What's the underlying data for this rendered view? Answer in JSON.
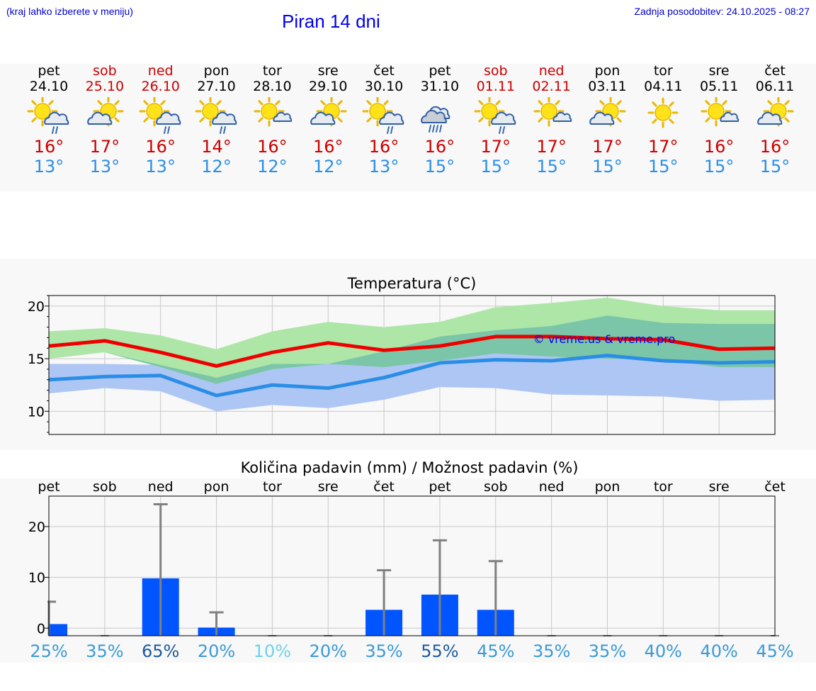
{
  "header": {
    "hint": "(kraj lahko izberete v meniju)",
    "title": "Piran 14 dni",
    "updated": "Zadnja posodobitev: 24.10.2025 - 08:27"
  },
  "days": [
    {
      "name": "pet",
      "date": "24.10",
      "weekend": false,
      "icon": "sun-cloud-rain-icon",
      "tmax": "16°",
      "tmin": "13°"
    },
    {
      "name": "sob",
      "date": "25.10",
      "weekend": true,
      "icon": "sun-cloud-icon",
      "tmax": "17°",
      "tmin": "13°"
    },
    {
      "name": "ned",
      "date": "26.10",
      "weekend": true,
      "icon": "sun-cloud-rain-icon",
      "tmax": "16°",
      "tmin": "13°"
    },
    {
      "name": "pon",
      "date": "27.10",
      "weekend": false,
      "icon": "sun-cloud-rain-icon",
      "tmax": "14°",
      "tmin": "12°"
    },
    {
      "name": "tor",
      "date": "28.10",
      "weekend": false,
      "icon": "sun-small-cloud-icon",
      "tmax": "16°",
      "tmin": "12°"
    },
    {
      "name": "sre",
      "date": "29.10",
      "weekend": false,
      "icon": "sun-cloud-icon",
      "tmax": "16°",
      "tmin": "12°"
    },
    {
      "name": "čet",
      "date": "30.10",
      "weekend": false,
      "icon": "sun-cloud-rain-icon",
      "tmax": "16°",
      "tmin": "13°"
    },
    {
      "name": "pet",
      "date": "31.10",
      "weekend": false,
      "icon": "cloud-heavy-rain-icon",
      "tmax": "16°",
      "tmin": "15°"
    },
    {
      "name": "sob",
      "date": "01.11",
      "weekend": true,
      "icon": "sun-cloud-rain-icon",
      "tmax": "17°",
      "tmin": "15°"
    },
    {
      "name": "ned",
      "date": "02.11",
      "weekend": true,
      "icon": "sun-small-cloud-icon",
      "tmax": "17°",
      "tmin": "15°"
    },
    {
      "name": "pon",
      "date": "03.11",
      "weekend": false,
      "icon": "sun-cloud-icon",
      "tmax": "17°",
      "tmin": "15°"
    },
    {
      "name": "tor",
      "date": "04.11",
      "weekend": false,
      "icon": "sun-icon",
      "tmax": "17°",
      "tmin": "15°"
    },
    {
      "name": "sre",
      "date": "05.11",
      "weekend": false,
      "icon": "sun-small-cloud-icon",
      "tmax": "16°",
      "tmin": "15°"
    },
    {
      "name": "čet",
      "date": "06.11",
      "weekend": false,
      "icon": "sun-cloud-icon",
      "tmax": "16°",
      "tmin": "15°"
    }
  ],
  "colors": {
    "max_line": "#ee0000",
    "min_line": "#2a8ee6",
    "max_band": "#aee6a8",
    "min_band": "#aec6f4",
    "overlap_band": "#7bc5a8",
    "bar": "#0055ff",
    "error_bar": "#808080",
    "link": "#0000ee"
  },
  "chart_data": [
    {
      "type": "line",
      "title": "Temperatura (°C)",
      "watermark": "© vreme.us & vreme.pro",
      "ylim": [
        7.8,
        21
      ],
      "yticks": [
        10,
        15,
        20
      ],
      "x": [
        0,
        1,
        2,
        3,
        4,
        5,
        6,
        7,
        8,
        9,
        10,
        11,
        12,
        13
      ],
      "series": [
        {
          "name": "max",
          "values": [
            16.2,
            16.7,
            15.6,
            14.3,
            15.6,
            16.5,
            15.8,
            16.2,
            17.1,
            17.1,
            16.9,
            16.8,
            15.9,
            16.0
          ]
        },
        {
          "name": "min",
          "values": [
            13.0,
            13.3,
            13.4,
            11.5,
            12.5,
            12.2,
            13.2,
            14.6,
            14.9,
            14.8,
            15.3,
            14.8,
            14.6,
            14.7
          ]
        },
        {
          "name": "max_range_low",
          "values": [
            15.0,
            15.6,
            14.2,
            12.6,
            14.0,
            14.5,
            14.2,
            14.8,
            15.5,
            15.2,
            15.0,
            14.9,
            14.2,
            14.2
          ]
        },
        {
          "name": "max_range_high",
          "values": [
            17.6,
            17.9,
            17.2,
            15.9,
            17.6,
            18.5,
            18.0,
            18.5,
            19.9,
            20.3,
            20.8,
            20.0,
            19.6,
            19.6
          ]
        },
        {
          "name": "min_range_low",
          "values": [
            11.7,
            12.2,
            11.9,
            10.0,
            10.6,
            10.3,
            11.1,
            12.3,
            12.2,
            11.6,
            11.5,
            11.4,
            11.0,
            11.1
          ]
        },
        {
          "name": "min_range_high",
          "values": [
            14.5,
            14.5,
            14.4,
            13.2,
            14.5,
            14.5,
            15.7,
            17.1,
            17.7,
            18.1,
            19.1,
            18.4,
            18.3,
            18.3
          ]
        }
      ]
    },
    {
      "type": "bar",
      "title": "Količina padavin (mm) / Možnost padavin (%)",
      "categories": [
        "pet",
        "sob",
        "ned",
        "pon",
        "tor",
        "sre",
        "čet",
        "pet",
        "sob",
        "ned",
        "pon",
        "tor",
        "sre",
        "čet"
      ],
      "ylim": [
        -1.5,
        26
      ],
      "yticks": [
        0,
        10,
        20
      ],
      "values": [
        0.8,
        0,
        9.8,
        0.1,
        0,
        0,
        3.6,
        6.6,
        3.6,
        0,
        0,
        0,
        0,
        0
      ],
      "error_high": [
        5.2,
        0,
        24.4,
        3.1,
        0,
        0,
        11.4,
        17.3,
        13.2,
        0,
        0,
        0,
        0,
        0
      ],
      "probability": [
        "25%",
        "35%",
        "65%",
        "20%",
        "10%",
        "20%",
        "35%",
        "55%",
        "45%",
        "35%",
        "35%",
        "40%",
        "40%",
        "45%"
      ],
      "probability_values": [
        25,
        35,
        65,
        20,
        10,
        20,
        35,
        55,
        45,
        35,
        35,
        40,
        40,
        45
      ]
    }
  ]
}
